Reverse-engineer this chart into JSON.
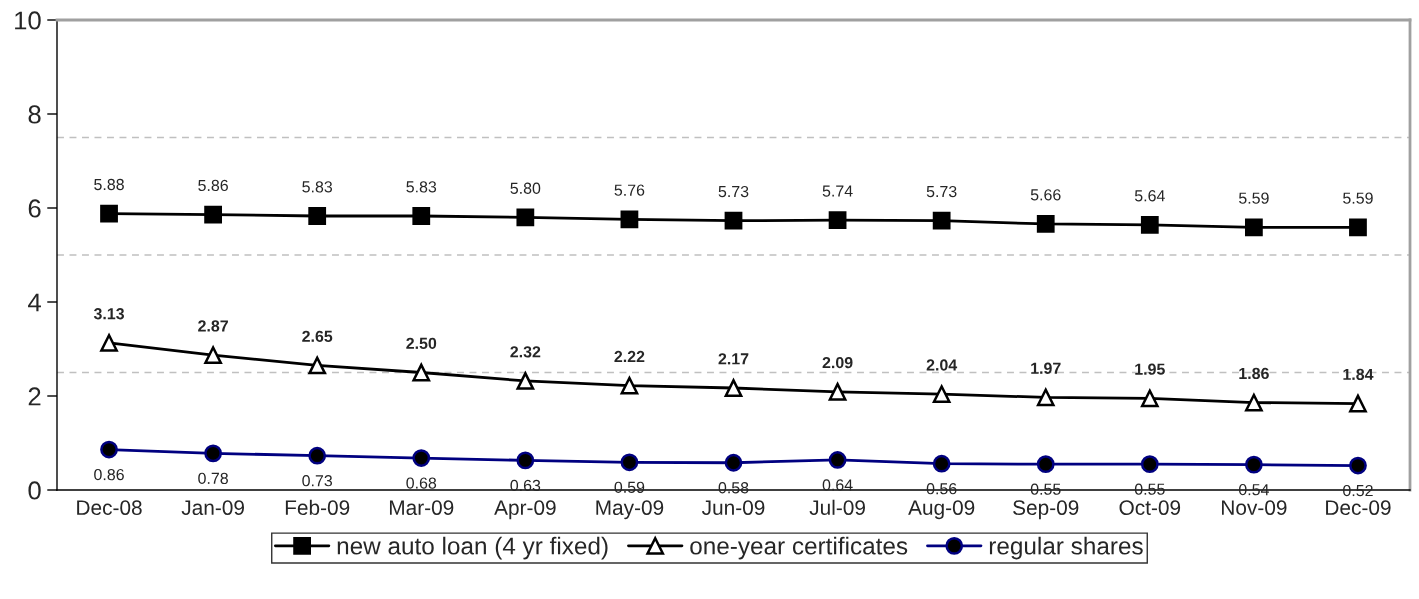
{
  "chart_data": {
    "type": "line",
    "categories": [
      "Dec-08",
      "Jan-09",
      "Feb-09",
      "Mar-09",
      "Apr-09",
      "May-09",
      "Jun-09",
      "Jul-09",
      "Aug-09",
      "Sep-09",
      "Oct-09",
      "Nov-09",
      "Dec-09"
    ],
    "ylim": [
      0,
      10
    ],
    "yticks": [
      0,
      2,
      4,
      6,
      8,
      10
    ],
    "legend": "bottom",
    "ref_lines": [
      {
        "axis": "y",
        "value": 2.5,
        "color": "#c0c0c0",
        "line_style": "dashed"
      },
      {
        "axis": "y",
        "value": 5,
        "color": "#c0c0c0",
        "line_style": "dashed"
      },
      {
        "axis": "y",
        "value": 7.5,
        "color": "#c0c0c0",
        "line_style": "dashed"
      }
    ],
    "series": [
      {
        "name": "new auto loan (4 yr fixed)",
        "color": "#000000",
        "marker": "square",
        "values": [
          5.88,
          5.86,
          5.83,
          5.83,
          5.8,
          5.76,
          5.73,
          5.74,
          5.73,
          5.66,
          5.64,
          5.59,
          5.59
        ],
        "value_labels": [
          "5.88",
          "5.86",
          "5.83",
          "5.83",
          "5.80",
          "5.76",
          "5.73",
          "5.74",
          "5.73",
          "5.66",
          "5.64",
          "5.59",
          "5.59"
        ]
      },
      {
        "name": "one-year certificates",
        "color": "#000000",
        "marker": "triangle",
        "values": [
          3.13,
          2.87,
          2.65,
          2.5,
          2.32,
          2.22,
          2.17,
          2.09,
          2.04,
          1.97,
          1.95,
          1.86,
          1.84
        ],
        "value_labels": [
          "3.13",
          "2.87",
          "2.65",
          "2.50",
          "2.32",
          "2.22",
          "2.17",
          "2.09",
          "2.04",
          "1.97",
          "1.95",
          "1.86",
          "1.84"
        ]
      },
      {
        "name": "regular shares",
        "color": "#000080",
        "marker": "circle",
        "values": [
          0.86,
          0.78,
          0.73,
          0.68,
          0.63,
          0.59,
          0.58,
          0.64,
          0.56,
          0.55,
          0.55,
          0.54,
          0.52
        ],
        "value_labels": [
          "0.86",
          "0.78",
          "0.73",
          "0.68",
          "0.63",
          "0.59",
          "0.58",
          "0.64",
          "0.56",
          "0.55",
          "0.55",
          "0.54",
          "0.52"
        ]
      }
    ]
  }
}
